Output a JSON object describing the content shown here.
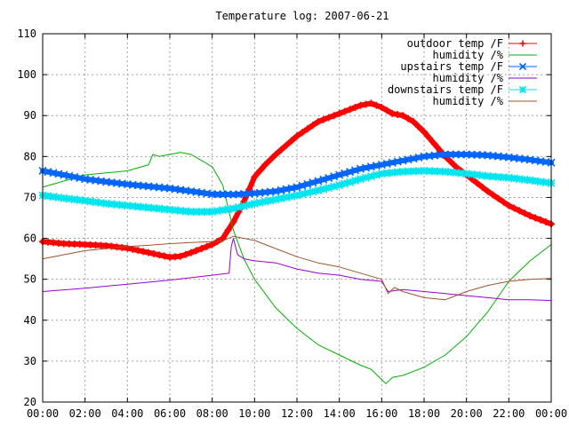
{
  "chart_data": {
    "type": "line",
    "title": "Temperature log: 2007-06-21",
    "xlabel": "",
    "ylabel": "",
    "xlim_hours": [
      0,
      24
    ],
    "ylim": [
      20,
      110
    ],
    "x_ticks": [
      {
        "label": "00:00",
        "value": 0
      },
      {
        "label": "02:00",
        "value": 2
      },
      {
        "label": "04:00",
        "value": 4
      },
      {
        "label": "06:00",
        "value": 6
      },
      {
        "label": "08:00",
        "value": 8
      },
      {
        "label": "10:00",
        "value": 10
      },
      {
        "label": "12:00",
        "value": 12
      },
      {
        "label": "14:00",
        "value": 14
      },
      {
        "label": "16:00",
        "value": 16
      },
      {
        "label": "18:00",
        "value": 18
      },
      {
        "label": "20:00",
        "value": 20
      },
      {
        "label": "22:00",
        "value": 22
      },
      {
        "label": "00:00",
        "value": 24
      }
    ],
    "y_ticks": [
      20,
      30,
      40,
      50,
      60,
      70,
      80,
      90,
      100,
      110
    ],
    "grid": true,
    "legend_position": "top-right",
    "series": [
      {
        "name": "outdoor temp /F",
        "color": "#ff0000",
        "marker": "plus",
        "points": [
          [
            0,
            59.2
          ],
          [
            1,
            58.7
          ],
          [
            2,
            58.5
          ],
          [
            3,
            58.2
          ],
          [
            4,
            57.6
          ],
          [
            5,
            56.5
          ],
          [
            6,
            55.4
          ],
          [
            6.5,
            55.6
          ],
          [
            7,
            56.5
          ],
          [
            7.5,
            57.5
          ],
          [
            8,
            58.5
          ],
          [
            8.5,
            60
          ],
          [
            9,
            64
          ],
          [
            9.5,
            69
          ],
          [
            10,
            75
          ],
          [
            10.5,
            78
          ],
          [
            11,
            80.5
          ],
          [
            12,
            85
          ],
          [
            13,
            88.5
          ],
          [
            14,
            90.5
          ],
          [
            15,
            92.5
          ],
          [
            15.5,
            93
          ],
          [
            16,
            92
          ],
          [
            16.5,
            90.5
          ],
          [
            17,
            90
          ],
          [
            17.5,
            88.5
          ],
          [
            18,
            86
          ],
          [
            18.5,
            83
          ],
          [
            19,
            80
          ],
          [
            19.5,
            77.5
          ],
          [
            20,
            75.5
          ],
          [
            20.5,
            73.5
          ],
          [
            21,
            71.5
          ],
          [
            22,
            68
          ],
          [
            23,
            65.5
          ],
          [
            24,
            63.5
          ]
        ]
      },
      {
        "name": "humidity /%",
        "color": "#00b000",
        "marker": "none",
        "points": [
          [
            0,
            72.5
          ],
          [
            1,
            74
          ],
          [
            2,
            75.5
          ],
          [
            3,
            76
          ],
          [
            4,
            76.5
          ],
          [
            5,
            78
          ],
          [
            5.2,
            80.5
          ],
          [
            5.5,
            80
          ],
          [
            6,
            80.5
          ],
          [
            6.5,
            81
          ],
          [
            7,
            80.5
          ],
          [
            7.5,
            79
          ],
          [
            8,
            77.5
          ],
          [
            8.5,
            73
          ],
          [
            9,
            62
          ],
          [
            9.5,
            55
          ],
          [
            10,
            50
          ],
          [
            11,
            43
          ],
          [
            12,
            38
          ],
          [
            13,
            34
          ],
          [
            14,
            31.5
          ],
          [
            15,
            29
          ],
          [
            15.5,
            28
          ],
          [
            16,
            25.5
          ],
          [
            16.2,
            24.5
          ],
          [
            16.5,
            26
          ],
          [
            17,
            26.5
          ],
          [
            18,
            28.5
          ],
          [
            19,
            31.5
          ],
          [
            20,
            36
          ],
          [
            21,
            42
          ],
          [
            22,
            49.5
          ],
          [
            23,
            54.5
          ],
          [
            24,
            58.5
          ]
        ]
      },
      {
        "name": "upstairs temp /F",
        "color": "#0066ff",
        "marker": "x",
        "points": [
          [
            0,
            76.5
          ],
          [
            1,
            75.5
          ],
          [
            2,
            74.5
          ],
          [
            3,
            73.8
          ],
          [
            4,
            73.2
          ],
          [
            5,
            72.7
          ],
          [
            6,
            72.2
          ],
          [
            7,
            71.5
          ],
          [
            8,
            70.8
          ],
          [
            9,
            70.7
          ],
          [
            10,
            71
          ],
          [
            11,
            71.5
          ],
          [
            12,
            72.5
          ],
          [
            13,
            74
          ],
          [
            14,
            75.5
          ],
          [
            15,
            77
          ],
          [
            16,
            78
          ],
          [
            17,
            79
          ],
          [
            18,
            80
          ],
          [
            19,
            80.5
          ],
          [
            20,
            80.5
          ],
          [
            21,
            80.3
          ],
          [
            22,
            79.8
          ],
          [
            23,
            79.2
          ],
          [
            24,
            78.5
          ]
        ]
      },
      {
        "name": "humidity /%",
        "color": "#9900cc",
        "marker": "none",
        "points": [
          [
            0,
            47
          ],
          [
            2,
            47.8
          ],
          [
            4,
            48.8
          ],
          [
            6,
            49.8
          ],
          [
            8,
            51
          ],
          [
            8.8,
            51.5
          ],
          [
            8.9,
            58
          ],
          [
            9,
            60
          ],
          [
            9.2,
            56
          ],
          [
            9.5,
            55
          ],
          [
            10,
            54.5
          ],
          [
            11,
            54
          ],
          [
            12,
            52.5
          ],
          [
            13,
            51.5
          ],
          [
            14,
            51
          ],
          [
            15,
            50
          ],
          [
            16,
            49.5
          ],
          [
            16.3,
            47
          ],
          [
            17,
            47.5
          ],
          [
            18,
            47
          ],
          [
            19,
            46.5
          ],
          [
            20,
            46
          ],
          [
            21,
            45.5
          ],
          [
            22,
            45
          ],
          [
            23,
            45
          ],
          [
            24,
            44.8
          ]
        ]
      },
      {
        "name": "downstairs temp /F",
        "color": "#00e5ee",
        "marker": "star",
        "points": [
          [
            0,
            70.5
          ],
          [
            1,
            69.8
          ],
          [
            2,
            69.2
          ],
          [
            3,
            68.5
          ],
          [
            4,
            68
          ],
          [
            5,
            67.5
          ],
          [
            6,
            67
          ],
          [
            7,
            66.5
          ],
          [
            8,
            66.5
          ],
          [
            9,
            67.3
          ],
          [
            10,
            68.5
          ],
          [
            11,
            69.5
          ],
          [
            12,
            70.5
          ],
          [
            13,
            71.7
          ],
          [
            14,
            73
          ],
          [
            15,
            74.5
          ],
          [
            16,
            75.8
          ],
          [
            17,
            76.3
          ],
          [
            18,
            76.5
          ],
          [
            19,
            76.3
          ],
          [
            20,
            75.8
          ],
          [
            21,
            75.2
          ],
          [
            22,
            74.8
          ],
          [
            23,
            74.2
          ],
          [
            24,
            73.5
          ]
        ]
      },
      {
        "name": "humidity /%",
        "color": "#a0522d",
        "marker": "none",
        "points": [
          [
            0,
            55
          ],
          [
            1,
            56
          ],
          [
            2,
            57
          ],
          [
            3,
            57.5
          ],
          [
            4,
            58
          ],
          [
            5,
            58.3
          ],
          [
            6,
            58.7
          ],
          [
            7,
            59
          ],
          [
            8,
            59.2
          ],
          [
            8.5,
            59.4
          ],
          [
            9,
            60.5
          ],
          [
            10,
            59.5
          ],
          [
            11,
            57.5
          ],
          [
            12,
            55.5
          ],
          [
            13,
            54
          ],
          [
            14,
            53
          ],
          [
            15,
            51.5
          ],
          [
            16,
            50
          ],
          [
            16.3,
            46.5
          ],
          [
            16.6,
            48
          ],
          [
            17,
            47
          ],
          [
            18,
            45.5
          ],
          [
            19,
            45
          ],
          [
            19.5,
            46
          ],
          [
            20,
            47
          ],
          [
            21,
            48.5
          ],
          [
            22,
            49.5
          ],
          [
            23,
            50
          ],
          [
            24,
            50.2
          ]
        ]
      }
    ]
  }
}
